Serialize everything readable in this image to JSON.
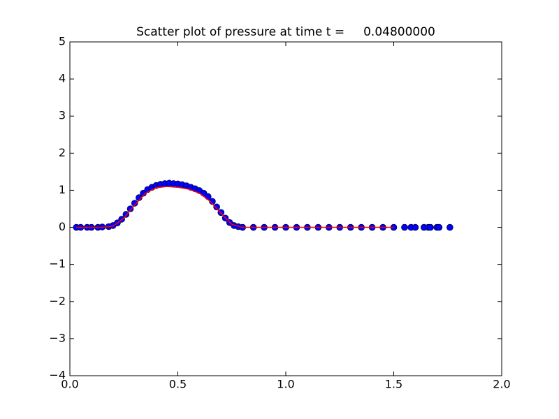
{
  "chart_data": {
    "type": "scatter",
    "title": "Scatter plot of pressure at time t =     0.04800000",
    "xlim": [
      0,
      2
    ],
    "ylim": [
      -4,
      5
    ],
    "xticks": [
      {
        "value": 0,
        "label": "0.0"
      },
      0.5,
      {
        "value": 1,
        "label": "1.0"
      },
      1.5,
      {
        "value": 2,
        "label": "2.0"
      }
    ],
    "yticks": [
      {
        "value": -4,
        "label": "−4"
      },
      {
        "value": -3,
        "label": "−3"
      },
      {
        "value": -2,
        "label": "−2"
      },
      {
        "value": -1,
        "label": "−1"
      },
      0,
      1,
      2,
      3,
      4,
      5
    ],
    "series": [
      {
        "style": "scatter",
        "color": "#0000ff",
        "edgecolor": "#000000",
        "x": [
          0.03,
          0.05,
          0.08,
          0.1,
          0.13,
          0.15,
          0.18,
          0.2,
          0.22,
          0.24,
          0.26,
          0.28,
          0.3,
          0.32,
          0.34,
          0.36,
          0.38,
          0.4,
          0.42,
          0.44,
          0.46,
          0.48,
          0.5,
          0.52,
          0.54,
          0.56,
          0.58,
          0.6,
          0.62,
          0.64,
          0.66,
          0.68,
          0.7,
          0.72,
          0.74,
          0.76,
          0.78,
          0.8,
          0.85,
          0.9,
          0.95,
          1.0,
          1.05,
          1.1,
          1.15,
          1.2,
          1.25,
          1.3,
          1.35,
          1.4,
          1.45,
          1.5,
          1.55,
          1.58,
          1.6,
          1.64,
          1.66,
          1.67,
          1.7,
          1.71,
          1.76
        ],
        "values": [
          0,
          0,
          0,
          0,
          0,
          0.01,
          0.02,
          0.05,
          0.12,
          0.22,
          0.35,
          0.5,
          0.65,
          0.8,
          0.92,
          1.02,
          1.08,
          1.13,
          1.16,
          1.18,
          1.19,
          1.18,
          1.17,
          1.15,
          1.12,
          1.08,
          1.04,
          0.99,
          0.92,
          0.83,
          0.7,
          0.55,
          0.4,
          0.25,
          0.13,
          0.05,
          0.02,
          0,
          0,
          0,
          0,
          0,
          0,
          0,
          0,
          0,
          0,
          0,
          0,
          0,
          0,
          0,
          0,
          0,
          0,
          0,
          0,
          0,
          0,
          0,
          0
        ]
      },
      {
        "style": "line",
        "color": "#ff0000",
        "x": [
          0.03,
          0.15,
          0.2,
          0.25,
          0.3,
          0.35,
          0.4,
          0.45,
          0.5,
          0.55,
          0.6,
          0.65,
          0.7,
          0.75,
          0.8,
          1.5
        ],
        "values": [
          0,
          0,
          0.03,
          0.25,
          0.6,
          0.92,
          1.07,
          1.1,
          1.08,
          1.03,
          0.92,
          0.7,
          0.38,
          0.08,
          0,
          0
        ]
      }
    ]
  }
}
